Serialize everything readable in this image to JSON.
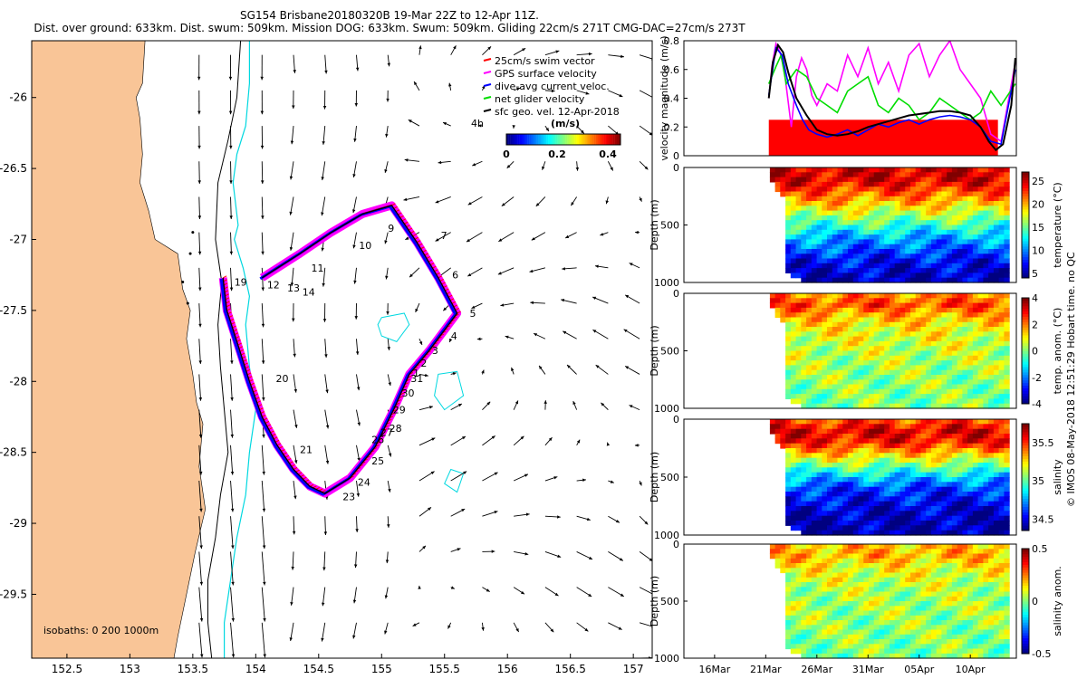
{
  "title_line1": "SG154 Brisbane20180320B 19-Mar 22Z to 12-Apr 11Z.",
  "title_line2": "Dist. over ground: 633km. Dist. swum: 509km. Mission DOG: 633km. Swum: 509km. Gliding 22cm/s 271T CMG-DAC=27cm/s 273T",
  "credit": "© IMOS 08-May-2018 12:51:29 Hobart time. no QC",
  "colors": {
    "land": "#f9c597",
    "isobath200": "#00d8e0",
    "isobath1000": "#000000",
    "track": "#000000",
    "swim": "#ff0000",
    "gps": "#ff00ff",
    "dac": "#0000ff",
    "net": "#00dd00"
  },
  "chart_data": [
    {
      "type": "map",
      "xlabel": "",
      "ylabel": "",
      "xlim": [
        152.22,
        157.15
      ],
      "ylim": [
        -29.95,
        -25.6
      ],
      "xticks": [
        152.5,
        153,
        153.5,
        154,
        154.5,
        155,
        155.5,
        156,
        156.5,
        157
      ],
      "yticks": [
        -26,
        -26.5,
        -27,
        -27.5,
        -28,
        -28.5,
        -29,
        -29.5
      ],
      "legend": [
        "25cm/s swim vector",
        "GPS surface velocity",
        "dive-avg current veloc.",
        "net glider velocity",
        "sfc geo. vel. 12-Apr-2018"
      ],
      "legend_time_marker": "4h",
      "colorbar": {
        "label": "(m/s)",
        "ticks": [
          0,
          0.2,
          0.4
        ],
        "range": [
          0,
          0.45
        ]
      },
      "isobath_label": "isobaths: 0   200  1000m",
      "track": [
        {
          "lon": 153.74,
          "lat": -27.27
        },
        {
          "lon": 153.77,
          "lat": -27.5
        },
        {
          "lon": 153.85,
          "lat": -27.72
        },
        {
          "lon": 153.95,
          "lat": -28.0
        },
        {
          "lon": 154.05,
          "lat": -28.25
        },
        {
          "lon": 154.17,
          "lat": -28.45
        },
        {
          "lon": 154.3,
          "lat": -28.62
        },
        {
          "lon": 154.43,
          "lat": -28.74
        },
        {
          "lon": 154.55,
          "lat": -28.79
        },
        {
          "lon": 154.75,
          "lat": -28.68
        },
        {
          "lon": 154.95,
          "lat": -28.46
        },
        {
          "lon": 155.1,
          "lat": -28.19
        },
        {
          "lon": 155.22,
          "lat": -27.95
        },
        {
          "lon": 155.38,
          "lat": -27.78
        },
        {
          "lon": 155.6,
          "lat": -27.52
        },
        {
          "lon": 155.45,
          "lat": -27.27
        },
        {
          "lon": 155.28,
          "lat": -27.02
        },
        {
          "lon": 155.08,
          "lat": -26.76
        },
        {
          "lon": 154.85,
          "lat": -26.82
        },
        {
          "lon": 154.6,
          "lat": -26.95
        },
        {
          "lon": 154.35,
          "lat": -27.1
        },
        {
          "lon": 154.05,
          "lat": -27.27
        }
      ],
      "day_labels": [
        {
          "label": "19",
          "lon": 153.83,
          "lat": -27.3
        },
        {
          "label": "12",
          "lon": 154.09,
          "lat": -27.32
        },
        {
          "label": "13",
          "lon": 154.25,
          "lat": -27.34
        },
        {
          "label": "14",
          "lon": 154.37,
          "lat": -27.37
        },
        {
          "label": "11",
          "lon": 154.44,
          "lat": -27.2
        },
        {
          "label": "10",
          "lon": 154.82,
          "lat": -27.04
        },
        {
          "label": "9",
          "lon": 155.05,
          "lat": -26.92
        },
        {
          "label": "7",
          "lon": 155.47,
          "lat": -26.97
        },
        {
          "label": "6",
          "lon": 155.56,
          "lat": -27.25
        },
        {
          "label": "5",
          "lon": 155.7,
          "lat": -27.52
        },
        {
          "label": "4",
          "lon": 155.55,
          "lat": -27.68
        },
        {
          "label": "3",
          "lon": 155.4,
          "lat": -27.78
        },
        {
          "label": "2",
          "lon": 155.31,
          "lat": -27.87
        },
        {
          "label": "1",
          "lon": 155.25,
          "lat": -27.94
        },
        {
          "label": "31",
          "lon": 155.23,
          "lat": -27.98
        },
        {
          "label": "30",
          "lon": 155.16,
          "lat": -28.08
        },
        {
          "label": "29",
          "lon": 155.09,
          "lat": -28.2
        },
        {
          "label": "28",
          "lon": 155.06,
          "lat": -28.33
        },
        {
          "label": "27",
          "lon": 154.99,
          "lat": -28.36
        },
        {
          "label": "26",
          "lon": 154.92,
          "lat": -28.41
        },
        {
          "label": "25",
          "lon": 154.92,
          "lat": -28.56
        },
        {
          "label": "24",
          "lon": 154.81,
          "lat": -28.71
        },
        {
          "label": "23",
          "lon": 154.69,
          "lat": -28.81
        },
        {
          "label": "21",
          "lon": 154.35,
          "lat": -28.48
        },
        {
          "label": "20",
          "lon": 154.16,
          "lat": -27.98
        }
      ]
    },
    {
      "type": "line",
      "ylabel": "velocity magnitude (m/s)",
      "ylim": [
        0,
        0.8
      ],
      "yticks": [
        0,
        0.2,
        0.4,
        0.6,
        0.8
      ],
      "x_units": "days since 13-Mar-2018",
      "xlim": [
        0,
        32.5
      ],
      "series": [
        {
          "name": "swim speed",
          "color": "#ff0000",
          "x": [
            8.3,
            30.7
          ],
          "values": [
            0.25,
            0.25
          ]
        },
        {
          "name": "GPS surface velocity",
          "color": "#ff00ff",
          "x": [
            8.3,
            8.6,
            9,
            9.4,
            9.8,
            10.5,
            11,
            11.5,
            12,
            12.5,
            13,
            14,
            15,
            16,
            17,
            18,
            19,
            20,
            21,
            22,
            23,
            24,
            25,
            26,
            27,
            28,
            29,
            30,
            31,
            32.4
          ],
          "values": [
            0.4,
            0.62,
            0.78,
            0.72,
            0.6,
            0.2,
            0.55,
            0.68,
            0.6,
            0.42,
            0.35,
            0.5,
            0.45,
            0.7,
            0.55,
            0.75,
            0.5,
            0.65,
            0.45,
            0.7,
            0.78,
            0.55,
            0.7,
            0.8,
            0.6,
            0.5,
            0.4,
            0.15,
            0.1,
            0.65
          ]
        },
        {
          "name": "net glider velocity",
          "color": "#00dd00",
          "x": [
            8.3,
            9,
            9.5,
            10,
            11,
            12,
            13,
            14,
            15,
            16,
            17,
            18,
            19,
            20,
            21,
            22,
            23,
            24,
            25,
            26,
            27,
            28,
            29,
            30,
            31,
            32.4
          ],
          "values": [
            0.5,
            0.62,
            0.7,
            0.5,
            0.6,
            0.55,
            0.4,
            0.35,
            0.3,
            0.45,
            0.5,
            0.55,
            0.35,
            0.3,
            0.4,
            0.35,
            0.25,
            0.3,
            0.4,
            0.35,
            0.3,
            0.25,
            0.3,
            0.45,
            0.35,
            0.5
          ]
        },
        {
          "name": "dive-avg current veloc.",
          "color": "#0000ff",
          "x": [
            8.3,
            9,
            9.6,
            10.2,
            11,
            11.6,
            12.2,
            13,
            14,
            15,
            16,
            17,
            18,
            19,
            20,
            21,
            22,
            23,
            24,
            25,
            26,
            27,
            28,
            29,
            30,
            31,
            32.4
          ],
          "values": [
            0.42,
            0.75,
            0.7,
            0.5,
            0.35,
            0.25,
            0.18,
            0.15,
            0.13,
            0.15,
            0.18,
            0.14,
            0.18,
            0.22,
            0.2,
            0.23,
            0.25,
            0.22,
            0.25,
            0.27,
            0.28,
            0.27,
            0.25,
            0.2,
            0.1,
            0.08,
            0.6
          ]
        },
        {
          "name": "fit",
          "color": "#000000",
          "x": [
            8.3,
            8.7,
            9.2,
            9.7,
            10.2,
            11,
            12,
            13,
            14,
            15,
            16,
            17,
            18,
            19,
            20,
            21,
            22,
            23,
            24,
            25,
            26,
            27,
            28,
            29,
            29.8,
            30.5,
            31.2,
            32,
            32.4
          ],
          "values": [
            0.4,
            0.65,
            0.77,
            0.72,
            0.58,
            0.4,
            0.28,
            0.18,
            0.15,
            0.14,
            0.15,
            0.17,
            0.2,
            0.22,
            0.24,
            0.26,
            0.28,
            0.29,
            0.3,
            0.31,
            0.31,
            0.3,
            0.28,
            0.2,
            0.1,
            0.04,
            0.08,
            0.35,
            0.68
          ]
        }
      ]
    },
    {
      "type": "heatmap",
      "ylabel": "Depth (m)",
      "colorbar_label": "temperature (°C)",
      "ylim": [
        1000,
        0
      ],
      "yticks": [
        0,
        500,
        1000
      ],
      "cticks": [
        5,
        10,
        15,
        20,
        25
      ],
      "crange": [
        4,
        27
      ],
      "xlim": [
        0,
        32.5
      ],
      "data_x": [
        8.4,
        31.8
      ],
      "profile": [
        [
          0,
          25
        ],
        [
          100,
          25
        ],
        [
          150,
          24
        ],
        [
          200,
          22.5
        ],
        [
          300,
          20
        ],
        [
          400,
          17
        ],
        [
          500,
          14
        ],
        [
          600,
          11
        ],
        [
          700,
          9
        ],
        [
          800,
          7
        ],
        [
          900,
          6
        ],
        [
          1000,
          5
        ]
      ]
    },
    {
      "type": "heatmap",
      "ylabel": "Depth (m)",
      "colorbar_label": "temp. anom. (°C)",
      "ylim": [
        1000,
        0
      ],
      "yticks": [
        0,
        500,
        1000
      ],
      "cticks": [
        -4,
        -2,
        0,
        2,
        4
      ],
      "crange": [
        -4,
        4
      ],
      "xlim": [
        0,
        32.5
      ],
      "data_x": [
        8.4,
        31.8
      ],
      "profile": [
        [
          0,
          1.8
        ],
        [
          100,
          2.5
        ],
        [
          200,
          1.5
        ],
        [
          300,
          1
        ],
        [
          500,
          0.5
        ],
        [
          700,
          0.2
        ],
        [
          1000,
          0
        ]
      ]
    },
    {
      "type": "heatmap",
      "ylabel": "Depth (m)",
      "colorbar_label": "salinity",
      "ylim": [
        1000,
        0
      ],
      "yticks": [
        0,
        500,
        1000
      ],
      "cticks": [
        34.5,
        35,
        35.5
      ],
      "crange": [
        34.35,
        35.75
      ],
      "xlim": [
        0,
        32.5
      ],
      "data_x": [
        8.4,
        31.8
      ],
      "profile": [
        [
          0,
          35.45
        ],
        [
          100,
          35.62
        ],
        [
          200,
          35.55
        ],
        [
          300,
          35.3
        ],
        [
          400,
          35.05
        ],
        [
          500,
          34.8
        ],
        [
          600,
          34.6
        ],
        [
          800,
          34.45
        ],
        [
          1000,
          34.4
        ]
      ]
    },
    {
      "type": "heatmap",
      "ylabel": "Depth (m)",
      "colorbar_label": "salinity anom.",
      "ylim": [
        1000,
        0
      ],
      "yticks": [
        0,
        500,
        1000
      ],
      "cticks": [
        -0.5,
        0,
        0.5
      ],
      "crange": [
        -0.5,
        0.5
      ],
      "xlim": [
        0,
        32.5
      ],
      "data_x": [
        8.4,
        31.8
      ],
      "profile": [
        [
          0,
          0.18
        ],
        [
          100,
          0.2
        ],
        [
          200,
          0.12
        ],
        [
          400,
          0.05
        ],
        [
          700,
          0.02
        ],
        [
          1000,
          0
        ]
      ],
      "xticks": [
        {
          "label": "16Mar",
          "x": 3
        },
        {
          "label": "21Mar",
          "x": 8
        },
        {
          "label": "26Mar",
          "x": 13
        },
        {
          "label": "31Mar",
          "x": 18
        },
        {
          "label": "05Apr",
          "x": 23
        },
        {
          "label": "10Apr",
          "x": 28
        }
      ]
    }
  ]
}
